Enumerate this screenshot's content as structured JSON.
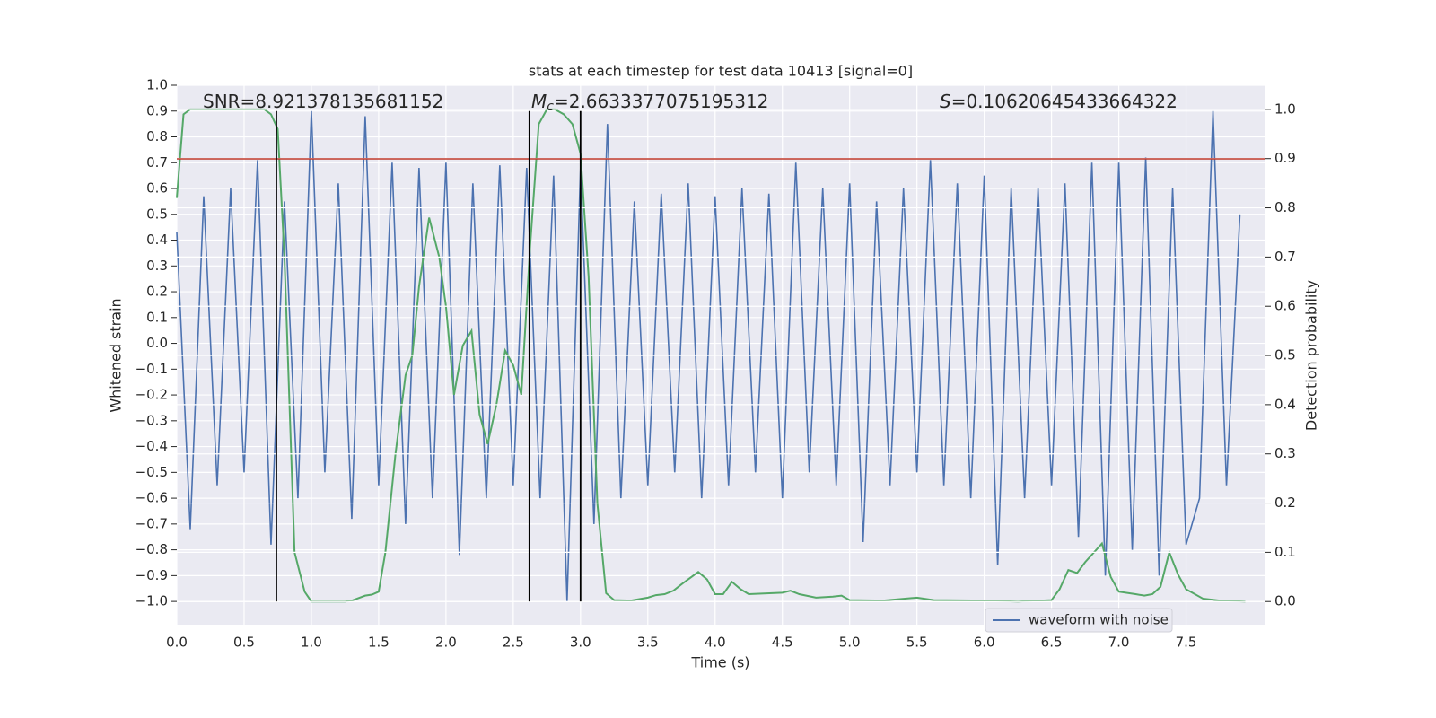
{
  "chart_data": {
    "type": "line",
    "title": "stats at each timestep for test data 10413 [signal=0]",
    "xlabel": "Time (s)",
    "ylabel": "Whitened strain",
    "y2label": "Detection probability",
    "xlim": [
      0,
      8.09
    ],
    "ylim": [
      -1.09,
      1.0
    ],
    "y2lim": [
      -0.047,
      1.049
    ],
    "xticks": [
      {
        "value": 0,
        "label": "0.0"
      },
      0.5,
      {
        "value": 1,
        "label": "1.0"
      },
      1.5,
      {
        "value": 2,
        "label": "2.0"
      },
      2.5,
      {
        "value": 3,
        "label": "3.0"
      },
      3.5,
      {
        "value": 4,
        "label": "4.0"
      },
      4.5,
      {
        "value": 5,
        "label": "5.0"
      },
      5.5,
      {
        "value": 6,
        "label": "6.0"
      },
      6.5,
      {
        "value": 7,
        "label": "7.0"
      },
      7.5
    ],
    "yticks": [
      {
        "value": -1.0,
        "label": "−1.0"
      },
      {
        "value": -0.9,
        "label": "−0.9"
      },
      {
        "value": -0.8,
        "label": "−0.8"
      },
      {
        "value": -0.7,
        "label": "−0.7"
      },
      {
        "value": -0.6,
        "label": "−0.6"
      },
      {
        "value": -0.5,
        "label": "−0.5"
      },
      {
        "value": -0.4,
        "label": "−0.4"
      },
      {
        "value": -0.3,
        "label": "−0.3"
      },
      {
        "value": -0.2,
        "label": "−0.2"
      },
      {
        "value": -0.1,
        "label": "−0.1"
      },
      {
        "value": 0,
        "label": "0.0"
      },
      0.1,
      0.2,
      0.3,
      0.4,
      0.5,
      0.6,
      0.7,
      0.8,
      0.9,
      {
        "value": 1,
        "label": "1.0"
      }
    ],
    "y2ticks": [
      {
        "value": 0,
        "label": "0.0"
      },
      0.1,
      0.2,
      0.3,
      0.4,
      0.5,
      0.6,
      0.7,
      0.8,
      0.9,
      {
        "value": 1,
        "label": "1.0"
      }
    ],
    "grid": true,
    "legend": "lower right",
    "series": [
      {
        "name": "waveform with noise",
        "color": "#4c72b0",
        "x": [
          0.0,
          0.1,
          0.2,
          0.3,
          0.4,
          0.5,
          0.6,
          0.7,
          0.8,
          0.9,
          1.0,
          1.1,
          1.2,
          1.3,
          1.4,
          1.5,
          1.6,
          1.7,
          1.8,
          1.9,
          2.0,
          2.1,
          2.2,
          2.3,
          2.4,
          2.5,
          2.6,
          2.7,
          2.8,
          2.9,
          3.0,
          3.1,
          3.2,
          3.3,
          3.4,
          3.5,
          3.6,
          3.7,
          3.8,
          3.9,
          4.0,
          4.1,
          4.2,
          4.3,
          4.4,
          4.5,
          4.6,
          4.7,
          4.8,
          4.9,
          5.0,
          5.1,
          5.2,
          5.3,
          5.4,
          5.5,
          5.6,
          5.7,
          5.8,
          5.9,
          6.0,
          6.1,
          6.2,
          6.3,
          6.4,
          6.5,
          6.6,
          6.7,
          6.8,
          6.9,
          7.0,
          7.1,
          7.2,
          7.3,
          7.4,
          7.5,
          7.6,
          7.7,
          7.8,
          7.9
        ],
        "values": [
          0.43,
          -0.72,
          0.57,
          -0.55,
          0.6,
          -0.5,
          0.71,
          -0.78,
          0.55,
          -0.6,
          0.9,
          -0.5,
          0.62,
          -0.68,
          0.88,
          -0.55,
          0.7,
          -0.7,
          0.68,
          -0.6,
          0.7,
          -0.82,
          0.62,
          -0.6,
          0.69,
          -0.55,
          0.68,
          -0.6,
          0.65,
          -1.0,
          0.68,
          -0.7,
          0.85,
          -0.6,
          0.55,
          -0.55,
          0.58,
          -0.5,
          0.62,
          -0.6,
          0.57,
          -0.55,
          0.6,
          -0.5,
          0.58,
          -0.6,
          0.7,
          -0.5,
          0.6,
          -0.55,
          0.62,
          -0.77,
          0.55,
          -0.55,
          0.6,
          -0.5,
          0.71,
          -0.55,
          0.62,
          -0.6,
          0.65,
          -0.86,
          0.6,
          -0.6,
          0.6,
          -0.55,
          0.62,
          -0.75,
          0.7,
          -0.9,
          0.7,
          -0.8,
          0.72,
          -0.9,
          0.6,
          -0.78,
          -0.6,
          0.9,
          -0.55,
          0.5
        ]
      },
      {
        "color": "#55a868",
        "axis": "y2",
        "x": [
          0.0,
          0.05,
          0.1,
          0.65,
          0.7,
          0.75,
          0.8,
          0.875,
          0.95,
          1.0,
          1.25,
          1.3,
          1.4,
          1.45,
          1.5,
          1.55,
          1.625,
          1.7,
          1.75,
          1.8,
          1.875,
          1.95,
          2.0,
          2.06,
          2.125,
          2.19,
          2.25,
          2.31,
          2.375,
          2.44,
          2.5,
          2.56,
          2.625,
          2.69,
          2.75,
          2.81,
          2.875,
          2.94,
          3.0,
          3.06,
          3.125,
          3.19,
          3.25,
          3.375,
          3.5,
          3.56,
          3.625,
          3.69,
          3.75,
          3.875,
          3.94,
          4.0,
          4.06,
          4.125,
          4.19,
          4.25,
          4.5,
          4.56,
          4.625,
          4.75,
          4.875,
          4.94,
          5.0,
          5.25,
          5.5,
          5.625,
          6.0,
          6.25,
          6.5,
          6.56,
          6.625,
          6.69,
          6.75,
          6.875,
          6.94,
          7.0,
          7.125,
          7.19,
          7.25,
          7.31,
          7.375,
          7.44,
          7.5,
          7.625,
          7.75,
          7.94
        ],
        "values": [
          0.82,
          0.99,
          1.0,
          1.0,
          0.99,
          0.96,
          0.7,
          0.1,
          0.02,
          0.0,
          0.0,
          0.002,
          0.012,
          0.014,
          0.02,
          0.1,
          0.3,
          0.46,
          0.5,
          0.64,
          0.78,
          0.7,
          0.6,
          0.42,
          0.52,
          0.55,
          0.38,
          0.32,
          0.4,
          0.51,
          0.48,
          0.42,
          0.72,
          0.97,
          1.0,
          1.0,
          0.99,
          0.97,
          0.91,
          0.66,
          0.2,
          0.017,
          0.003,
          0.002,
          0.008,
          0.013,
          0.015,
          0.022,
          0.035,
          0.06,
          0.045,
          0.015,
          0.015,
          0.04,
          0.025,
          0.015,
          0.018,
          0.022,
          0.015,
          0.008,
          0.01,
          0.012,
          0.003,
          0.002,
          0.008,
          0.003,
          0.002,
          0.0,
          0.003,
          0.025,
          0.064,
          0.058,
          0.08,
          0.118,
          0.05,
          0.02,
          0.015,
          0.012,
          0.015,
          0.03,
          0.1,
          0.055,
          0.025,
          0.006,
          0.002,
          0.0
        ]
      }
    ],
    "hlines": [
      {
        "y": 0.715,
        "color": "#c0392b"
      }
    ],
    "vlines": [
      {
        "x": 0.74,
        "ymin": -1.0,
        "ymax": 0.9,
        "color": "#000000"
      },
      {
        "x": 2.62,
        "ymin": -1.0,
        "ymax": 0.9,
        "color": "#000000"
      },
      {
        "x": 3.0,
        "ymin": -1.0,
        "ymax": 0.9,
        "color": "#000000"
      }
    ],
    "annotations": [
      {
        "text": "SNR=8.921378135681152"
      },
      {
        "italic": "M",
        "sub": "c",
        "text": "=2.6633377075195312"
      },
      {
        "italic": "S",
        "text": "=0.10620645433664322"
      }
    ]
  }
}
